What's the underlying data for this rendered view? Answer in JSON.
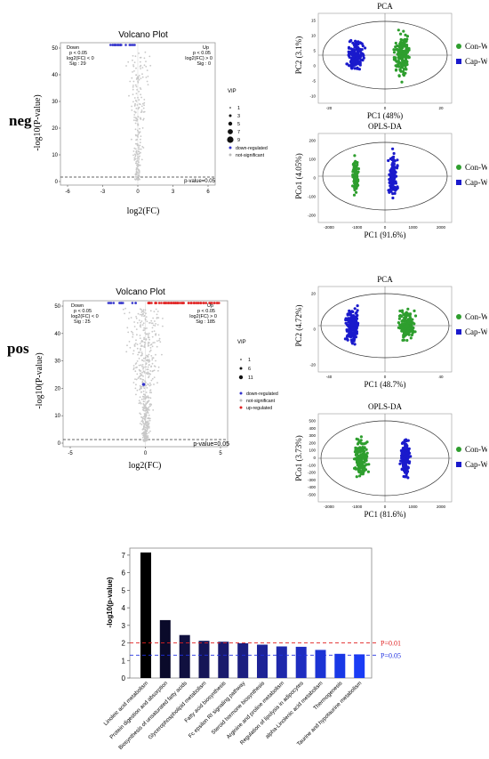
{
  "rows": [
    {
      "label": "neg"
    },
    {
      "label": "pos"
    }
  ],
  "volcano": [
    {
      "title": "Volcano Plot",
      "xlabel": "log2(FC)",
      "ylabel": "-log10(P-value)",
      "down": {
        "name": "Down",
        "p": "p < 0.05",
        "fc": "log2(FC) < 0",
        "sig": "Sig : 29"
      },
      "up": {
        "name": "Up",
        "p": "p < 0.05",
        "fc": "log2(FC) > 0",
        "sig": "Sig : 0"
      },
      "threshold_label": "p-value=0.05",
      "xticks": [
        "-6",
        "-3",
        "0",
        "3",
        "6"
      ],
      "yticks": [
        "0",
        "10",
        "20",
        "30",
        "40",
        "50"
      ],
      "vip_title": "VIP",
      "vip_sizes": [
        "1",
        "3",
        "5",
        "7",
        "9"
      ],
      "legend": [
        {
          "name": "down-regulated",
          "color": "#3333cc"
        },
        {
          "name": "not-significant",
          "color": "#bbbbbb"
        }
      ]
    },
    {
      "title": "Volcano Plot",
      "xlabel": "log2(FC)",
      "ylabel": "-log10(P-value)",
      "down": {
        "name": "Down",
        "p": "p < 0.05",
        "fc": "log2(FC) < 0",
        "sig": "Sig : 25"
      },
      "up": {
        "name": "Up",
        "p": "p < 0.05",
        "fc": "log2(FC) > 0",
        "sig": "Sig : 185"
      },
      "threshold_label": "p-value=0.05",
      "xticks": [
        "-5",
        "0",
        "5"
      ],
      "yticks": [
        "0",
        "10",
        "20",
        "30",
        "40",
        "50"
      ],
      "vip_title": "VIP",
      "vip_sizes": [
        "1",
        "6",
        "11"
      ],
      "legend": [
        {
          "name": "down-regulated",
          "color": "#3333cc"
        },
        {
          "name": "not-significant",
          "color": "#bbbbbb"
        },
        {
          "name": "up-regulated",
          "color": "#e02020"
        }
      ]
    }
  ],
  "scores": [
    {
      "title": "PCA",
      "xlabel": "PC1 (48%)",
      "ylabel": "PC2 (3.1%)",
      "xticks": [
        "-20",
        "0",
        "20"
      ],
      "yticks": [
        "-10",
        "-5",
        "0",
        "5",
        "10",
        "15"
      ],
      "groups": [
        {
          "name": "Con-W",
          "color": "#2e9e2e"
        },
        {
          "name": "Cap-W",
          "color": "#1a1acc"
        }
      ]
    },
    {
      "title": "OPLS-DA",
      "xlabel": "PC1 (91.6%)",
      "ylabel": "PCo1 (4.05%)",
      "xticks": [
        "-2000",
        "-1000",
        "0",
        "1000",
        "2000"
      ],
      "yticks": [
        "-200",
        "-100",
        "0",
        "100",
        "200"
      ],
      "groups": [
        {
          "name": "Con-W",
          "color": "#2e9e2e"
        },
        {
          "name": "Cap-W",
          "color": "#1a1acc"
        }
      ]
    },
    {
      "title": "PCA",
      "xlabel": "PC1 (48.7%)",
      "ylabel": "PC2 (4.72%)",
      "xticks": [
        "-40",
        "0",
        "40"
      ],
      "yticks": [
        "-20",
        "0",
        "20"
      ],
      "groups": [
        {
          "name": "Con-W",
          "color": "#2e9e2e"
        },
        {
          "name": "Cap-W",
          "color": "#1a1acc"
        }
      ]
    },
    {
      "title": "OPLS-DA",
      "xlabel": "PC1 (81.6%)",
      "ylabel": "PCo1 (3.73%)",
      "xticks": [
        "-2000",
        "-1000",
        "0",
        "1000",
        "2000"
      ],
      "yticks": [
        "-500",
        "-400",
        "-300",
        "-200",
        "-100",
        "0",
        "100",
        "200",
        "300",
        "400",
        "500"
      ],
      "groups": [
        {
          "name": "Con-W",
          "color": "#2e9e2e"
        },
        {
          "name": "Cap-W",
          "color": "#1a1acc"
        }
      ]
    }
  ],
  "chart_data": {
    "type": "bar",
    "ylabel": "-log10(p-value)",
    "ylim": [
      0,
      7.4
    ],
    "yticks": [
      "0",
      "1",
      "2",
      "3",
      "4",
      "5",
      "6",
      "7"
    ],
    "categories": [
      "Linoleic acid metabolism",
      "Protein digestion and absorption",
      "Biosynthesis of unsaturated fatty acids",
      "Glycerophospholipid metabolism",
      "Fatty acid biosynthesis",
      "Fc epsilon RI signaling pathway",
      "Steroid hormone biosynthesis",
      "Arginine and proline metabolism",
      "Regulation of lipolysis in adipocytes",
      "alpha-Linolenic acid metabolism",
      "Thermogenesis",
      "Taurine and hypotaurine metabolism"
    ],
    "values": [
      7.15,
      3.3,
      2.45,
      2.12,
      2.07,
      1.98,
      1.9,
      1.8,
      1.78,
      1.6,
      1.38,
      1.35
    ],
    "colors": [
      "#000000",
      "#0a0a2a",
      "#10103f",
      "#151556",
      "#191a6c",
      "#1c1f80",
      "#1d2396",
      "#1e28ab",
      "#1e2dc0",
      "#1b33d4",
      "#1838e6",
      "#1a3cf5"
    ],
    "reference_lines": [
      {
        "label": "P=0.01",
        "value": 2.0,
        "color": "#e02020"
      },
      {
        "label": "P=0.05",
        "value": 1.3,
        "color": "#2030e0"
      }
    ]
  }
}
